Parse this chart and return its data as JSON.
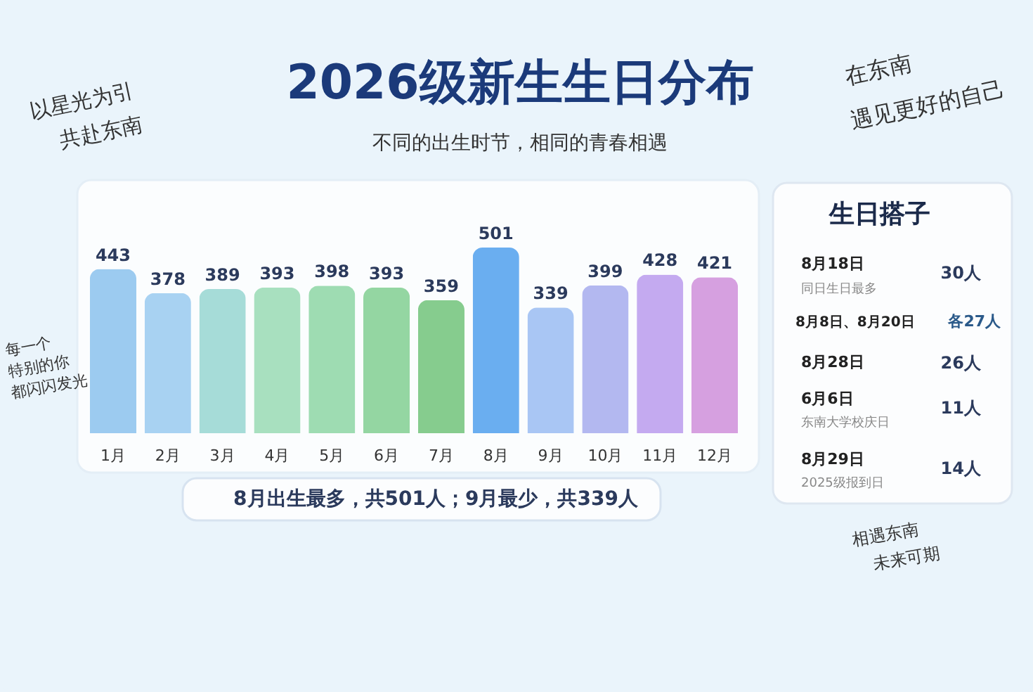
{
  "chart_data": {
    "type": "bar",
    "title": "2026级新生生日分布",
    "subtitle": "不同的出生时节，相同的青春相遇",
    "categories": [
      "1月",
      "2月",
      "3月",
      "4月",
      "5月",
      "6月",
      "7月",
      "8月",
      "9月",
      "10月",
      "11月",
      "12月"
    ],
    "values": [
      443,
      378,
      389,
      393,
      398,
      393,
      359,
      501,
      339,
      399,
      428,
      421
    ],
    "colors": [
      "#9ccbf0",
      "#a8d2f2",
      "#a6dcd8",
      "#a8e0bf",
      "#9edcb2",
      "#94d6a2",
      "#86cc8e",
      "#6aaef0",
      "#a9c6f4",
      "#b3b8f0",
      "#c4aaf0",
      "#d6a0e0"
    ],
    "data_labels": true,
    "tick_labels": "x",
    "grid": false,
    "annotations": [
      "以星光为引",
      "共赴东南",
      "每一个",
      "特别的你",
      "都闪闪发光",
      "在东南",
      "遇见更好的自己",
      "相遇东南",
      "未来可期",
      "8月出生最多，共501人；9月最少，共339人",
      "生日搭子",
      "8月18日",
      "同日生日最多",
      "30人",
      "8月8日、8月20日",
      "各27人",
      "8月28日",
      "26人",
      "6月6日",
      "东南大学校庆日",
      "11人",
      "8月29日",
      "2025级报到日",
      "14人"
    ]
  }
}
